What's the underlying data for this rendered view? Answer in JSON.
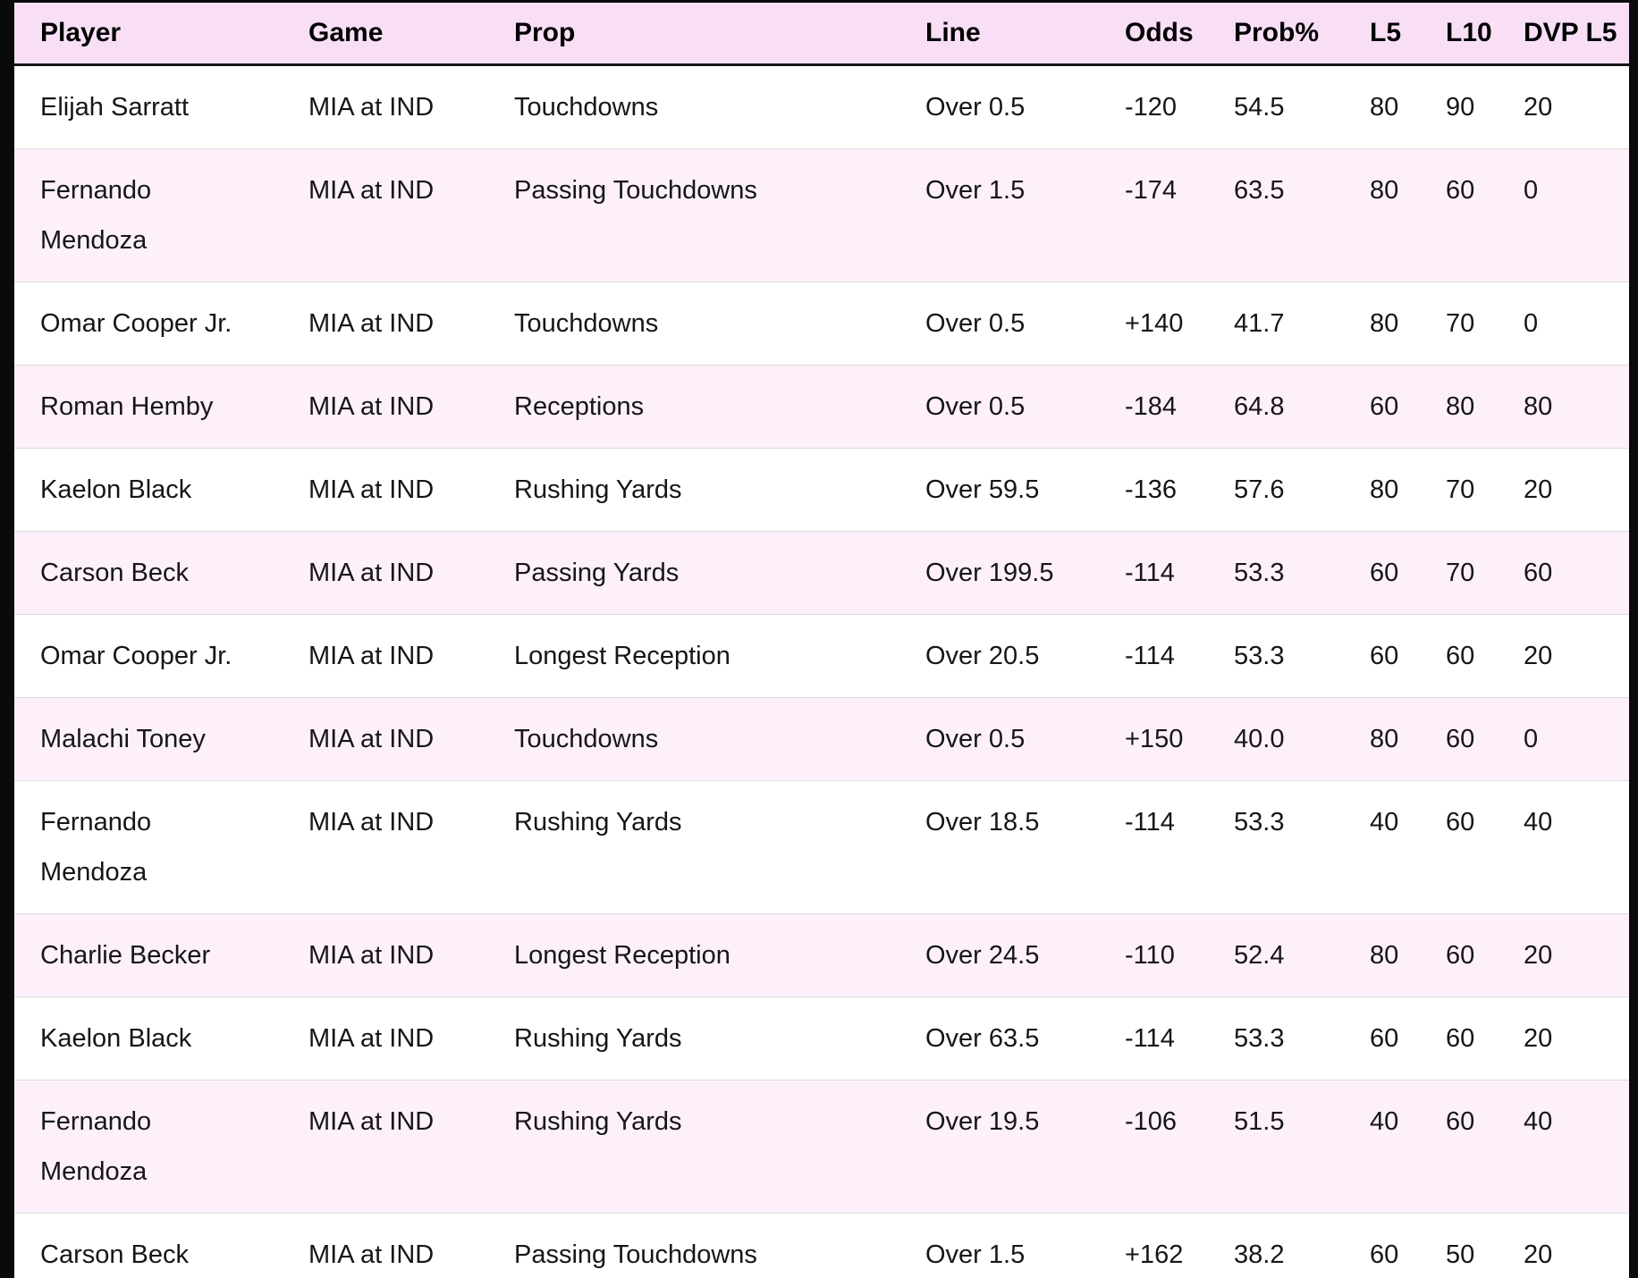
{
  "colors": {
    "page_background": "#0a0a0a",
    "header_bg": "#f8dff6",
    "row_bg": "#ffffff",
    "row_alt_bg": "#fdf0fb",
    "header_border": "#161616",
    "row_divider": "#dcdcdc",
    "text": "#161616"
  },
  "table": {
    "columns": [
      {
        "key": "player",
        "label": "Player"
      },
      {
        "key": "game",
        "label": "Game"
      },
      {
        "key": "prop",
        "label": "Prop"
      },
      {
        "key": "line",
        "label": "Line"
      },
      {
        "key": "odds",
        "label": "Odds"
      },
      {
        "key": "prob",
        "label": "Prob%"
      },
      {
        "key": "l5",
        "label": "L5"
      },
      {
        "key": "l10",
        "label": "L10"
      },
      {
        "key": "dvp",
        "label": "DVP L5"
      }
    ],
    "rows": [
      [
        "Elijah Sarratt",
        "MIA at IND",
        "Touchdowns",
        "Over 0.5",
        "-120",
        "54.5",
        "80",
        "90",
        "20"
      ],
      [
        "Fernando Mendoza",
        "MIA at IND",
        "Passing Touchdowns",
        "Over 1.5",
        "-174",
        "63.5",
        "80",
        "60",
        "0"
      ],
      [
        "Omar Cooper Jr.",
        "MIA at IND",
        "Touchdowns",
        "Over 0.5",
        "+140",
        "41.7",
        "80",
        "70",
        "0"
      ],
      [
        "Roman Hemby",
        "MIA at IND",
        "Receptions",
        "Over 0.5",
        "-184",
        "64.8",
        "60",
        "80",
        "80"
      ],
      [
        "Kaelon Black",
        "MIA at IND",
        "Rushing Yards",
        "Over 59.5",
        "-136",
        "57.6",
        "80",
        "70",
        "20"
      ],
      [
        "Carson Beck",
        "MIA at IND",
        "Passing Yards",
        "Over 199.5",
        "-114",
        "53.3",
        "60",
        "70",
        "60"
      ],
      [
        "Omar Cooper Jr.",
        "MIA at IND",
        "Longest Reception",
        "Over 20.5",
        "-114",
        "53.3",
        "60",
        "60",
        "20"
      ],
      [
        "Malachi Toney",
        "MIA at IND",
        "Touchdowns",
        "Over 0.5",
        "+150",
        "40.0",
        "80",
        "60",
        "0"
      ],
      [
        "Fernando Mendoza",
        "MIA at IND",
        "Rushing Yards",
        "Over 18.5",
        "-114",
        "53.3",
        "40",
        "60",
        "40"
      ],
      [
        "Charlie Becker",
        "MIA at IND",
        "Longest Reception",
        "Over 24.5",
        "-110",
        "52.4",
        "80",
        "60",
        "20"
      ],
      [
        "Kaelon Black",
        "MIA at IND",
        "Rushing Yards",
        "Over 63.5",
        "-114",
        "53.3",
        "60",
        "60",
        "20"
      ],
      [
        "Fernando Mendoza",
        "MIA at IND",
        "Rushing Yards",
        "Over 19.5",
        "-106",
        "51.5",
        "40",
        "60",
        "40"
      ],
      [
        "Carson Beck",
        "MIA at IND",
        "Passing Touchdowns",
        "Over 1.5",
        "+162",
        "38.2",
        "60",
        "50",
        "20"
      ]
    ]
  }
}
